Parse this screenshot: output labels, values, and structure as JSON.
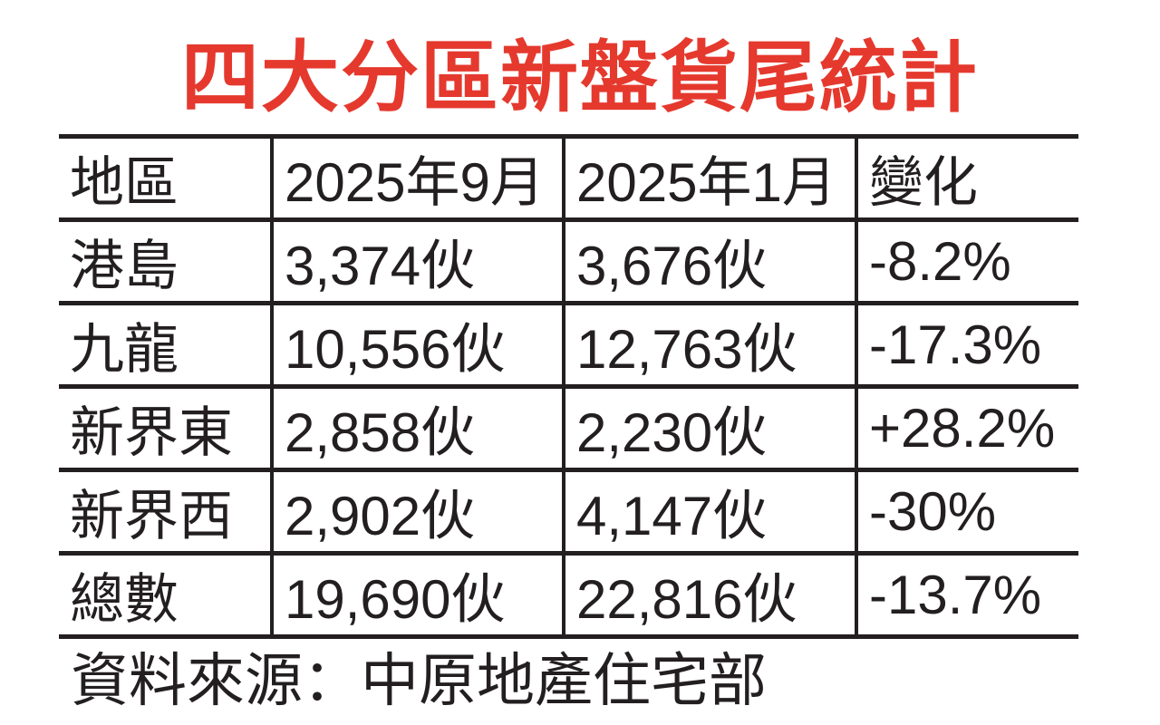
{
  "title": "四大分區新盤貨尾統計",
  "title_color": "#e5392e",
  "border_color": "#231f20",
  "table": {
    "headers": [
      "地區",
      "2025年9月",
      "2025年1月",
      "變化"
    ],
    "rows": [
      {
        "region": "港島",
        "sep2025": "3,374伙",
        "jan2025": "3,676伙",
        "change": "-8.2%"
      },
      {
        "region": "九龍",
        "sep2025": "10,556伙",
        "jan2025": "12,763伙",
        "change": "-17.3%"
      },
      {
        "region": "新界東",
        "sep2025": "2,858伙",
        "jan2025": "2,230伙",
        "change": "+28.2%"
      },
      {
        "region": "新界西",
        "sep2025": "2,902伙",
        "jan2025": "4,147伙",
        "change": "-30%"
      },
      {
        "region": "總數",
        "sep2025": "19,690伙",
        "jan2025": "22,816伙",
        "change": "-13.7%"
      }
    ]
  },
  "source": "資料來源：中原地產住宅部",
  "chart_data": {
    "type": "table",
    "title": "四大分區新盤貨尾統計",
    "columns": [
      "地區",
      "2025年9月",
      "2025年1月",
      "變化"
    ],
    "rows": [
      [
        "港島",
        "3,374伙",
        "3,676伙",
        "-8.2%"
      ],
      [
        "九龍",
        "10,556伙",
        "12,763伙",
        "-17.3%"
      ],
      [
        "新界東",
        "2,858伙",
        "2,230伙",
        "+28.2%"
      ],
      [
        "新界西",
        "2,902伙",
        "4,147伙",
        "-30%"
      ],
      [
        "總數",
        "19,690伙",
        "22,816伙",
        "-13.7%"
      ]
    ],
    "categories": [
      "港島",
      "九龍",
      "新界東",
      "新界西",
      "總數"
    ],
    "series": [
      {
        "name": "2025年9月",
        "values": [
          3374,
          10556,
          2858,
          2902,
          19690
        ]
      },
      {
        "name": "2025年1月",
        "values": [
          3676,
          12763,
          2230,
          4147,
          22816
        ]
      },
      {
        "name": "變化",
        "values": [
          "-8.2%",
          "-17.3%",
          "+28.2%",
          "-30%",
          "-13.7%"
        ]
      }
    ],
    "unit": "伙",
    "source": "資料來源：中原地產住宅部"
  }
}
